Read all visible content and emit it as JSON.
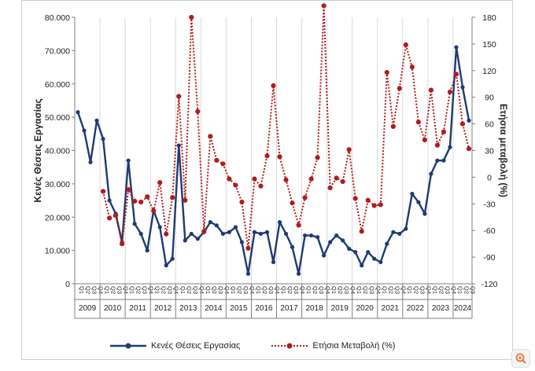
{
  "chart_data": {
    "type": "line",
    "ylabel_left": "Κενές Θέσεις Εργασίας",
    "ylabel_right": "Ετήσια μεταβολή (%)",
    "y_left": {
      "min": 0,
      "max": 80000,
      "ticks": [
        "0",
        "10.000",
        "20.000",
        "30.000",
        "40.000",
        "50.000",
        "60.000",
        "70.000",
        "80.000"
      ]
    },
    "y_right": {
      "min": -120,
      "max": 180,
      "ticks": [
        "-120",
        "-90",
        "-60",
        "-30",
        "0",
        "30",
        "60",
        "90",
        "120",
        "150",
        "180"
      ]
    },
    "quarter_labels": [
      "Q1",
      "Q2",
      "Q3",
      "Q4"
    ],
    "years": [
      "2009",
      "2010",
      "2011",
      "2012",
      "2013",
      "2014",
      "2015",
      "2016",
      "2017",
      "2018",
      "2019",
      "2020",
      "2021",
      "2022",
      "2023",
      "2024"
    ],
    "series": [
      {
        "name": "Κενές Θέσεις Εργασίας",
        "axis": "left",
        "color": "#1f3a73",
        "values": [
          51500,
          46000,
          36500,
          49000,
          43500,
          25000,
          21000,
          12500,
          37000,
          18000,
          15000,
          10000,
          22000,
          17000,
          5500,
          7500,
          41500,
          13000,
          15000,
          13500,
          15500,
          18500,
          17500,
          15000,
          15500,
          17000,
          12500,
          3000,
          15500,
          15000,
          15500,
          6500,
          18500,
          15000,
          11000,
          3000,
          14500,
          14500,
          14000,
          8500,
          12500,
          14500,
          13000,
          10500,
          9500,
          5500,
          9500,
          7500,
          6500,
          12000,
          15500,
          15000,
          16500,
          27000,
          24500,
          21000,
          33000,
          37000,
          37000,
          41000,
          71000,
          59000,
          49000
        ]
      },
      {
        "name": "Ετήσια Μεταβολή (%)",
        "axis": "right",
        "color": "#b01c1c",
        "values": [
          null,
          null,
          null,
          null,
          -16,
          -46,
          -43,
          -75,
          -14,
          -27,
          -28,
          -22,
          -38,
          -6,
          -64,
          -23,
          91,
          -26,
          180,
          74,
          -61,
          46,
          19,
          15,
          -2,
          -9,
          -28,
          -80,
          -2,
          -10,
          24,
          103,
          23,
          -3,
          -29,
          -54,
          -23,
          -2,
          22,
          193,
          -12,
          -1,
          -5,
          31,
          -24,
          -61,
          -26,
          -32,
          -31,
          118,
          57,
          100,
          149,
          124,
          62,
          42,
          98,
          36,
          51,
          96,
          116,
          60,
          32
        ]
      }
    ],
    "legend_position": "bottom"
  },
  "legend": {
    "series1_label": "Κενές Θέσεις Εργασίας",
    "series2_label": "Ετήσια Μεταβολή (%)"
  }
}
